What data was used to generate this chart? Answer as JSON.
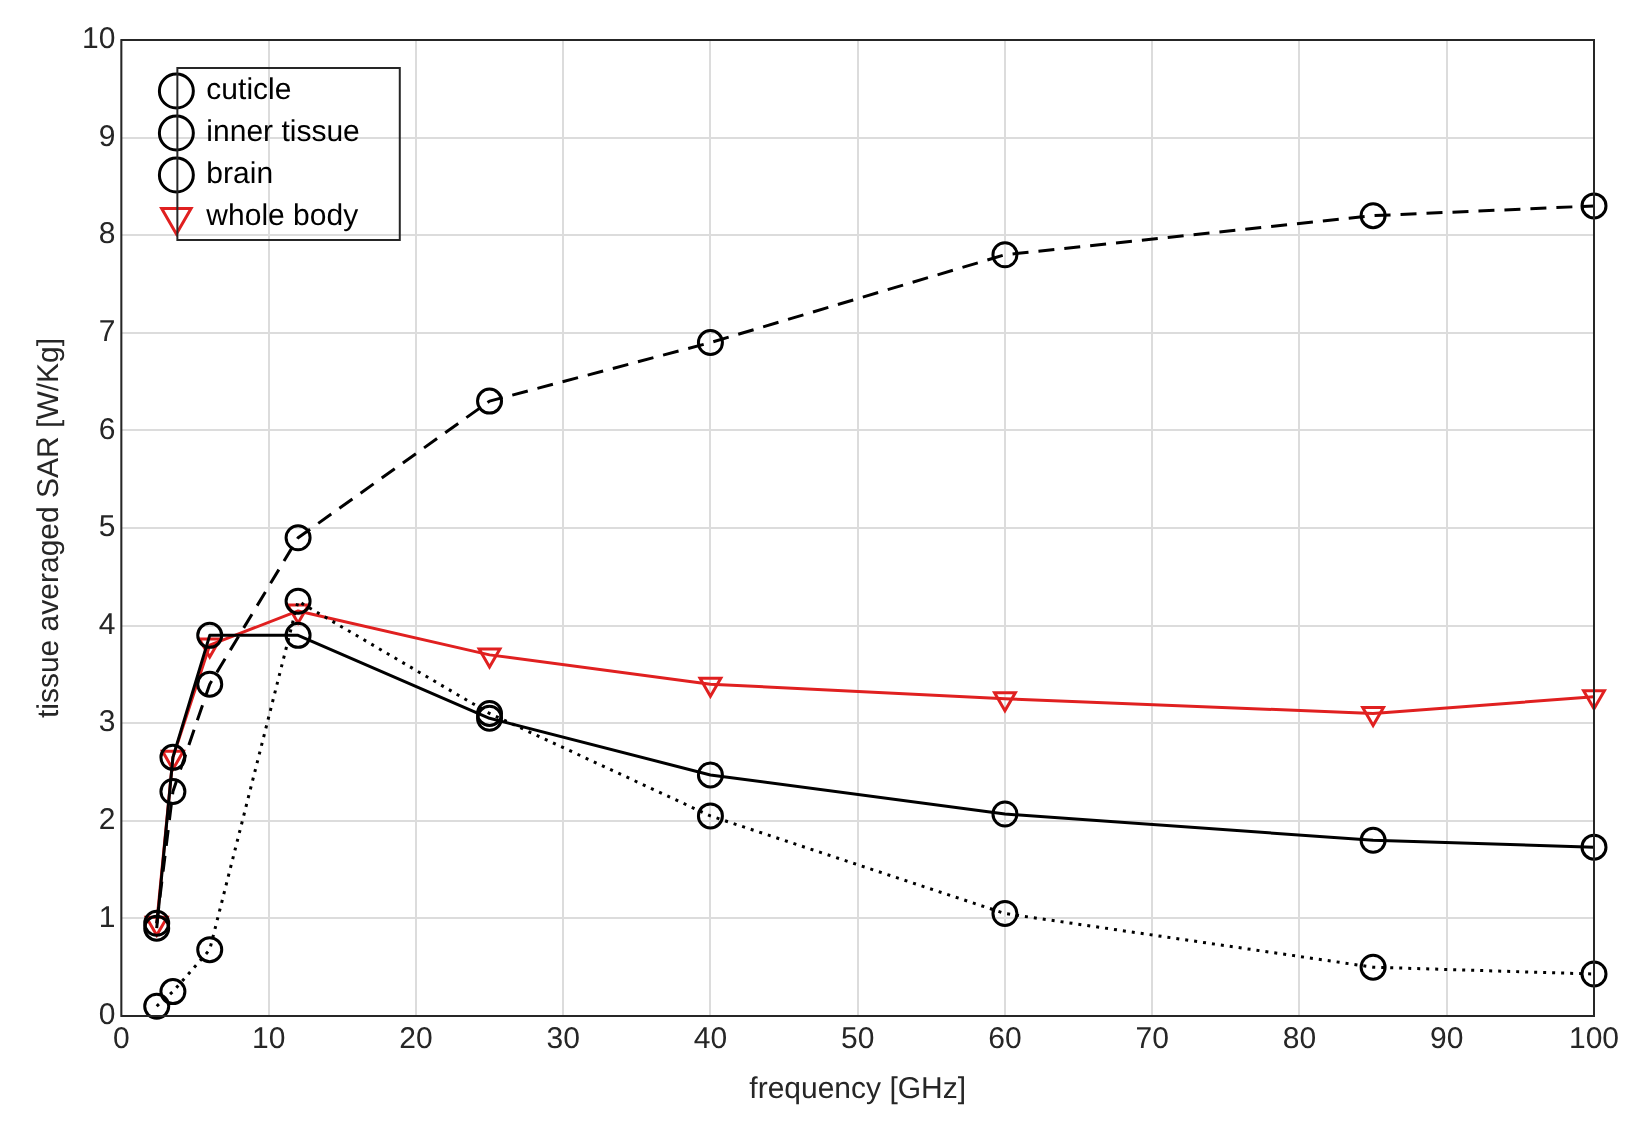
{
  "chart_data": {
    "type": "line",
    "xlabel": "frequency [GHz]",
    "ylabel": "tissue averaged SAR [W/Kg]",
    "x": [
      2.4,
      3.5,
      6,
      12,
      25,
      40,
      60,
      85,
      100
    ],
    "series": [
      {
        "name": "cuticle",
        "color": "#000000",
        "line_style": "dashed",
        "marker": "circle",
        "values": [
          0.95,
          2.3,
          3.4,
          4.9,
          6.3,
          6.9,
          7.8,
          8.2,
          8.3
        ]
      },
      {
        "name": "inner tissue",
        "color": "#000000",
        "line_style": "solid",
        "marker": "circle",
        "values": [
          0.9,
          2.65,
          3.9,
          3.9,
          3.05,
          2.47,
          2.07,
          1.8,
          1.73
        ]
      },
      {
        "name": "brain",
        "color": "#000000",
        "line_style": "dotted",
        "marker": "circle",
        "values": [
          0.1,
          0.25,
          0.68,
          4.25,
          3.1,
          2.05,
          1.05,
          0.5,
          0.43
        ]
      },
      {
        "name": "whole body",
        "color": "#e02020",
        "line_style": "solid",
        "marker": "triangle",
        "values": [
          0.95,
          2.65,
          3.8,
          4.15,
          3.7,
          3.4,
          3.25,
          3.1,
          3.27
        ]
      }
    ],
    "xlim": [
      0,
      100
    ],
    "xticks": [
      0,
      10,
      20,
      30,
      40,
      50,
      60,
      70,
      80,
      90,
      100
    ],
    "ylim": [
      0,
      10
    ],
    "yticks": [
      0,
      1,
      2,
      3,
      4,
      5,
      6,
      7,
      8,
      9,
      10
    ],
    "grid": true,
    "legend": "top left"
  }
}
